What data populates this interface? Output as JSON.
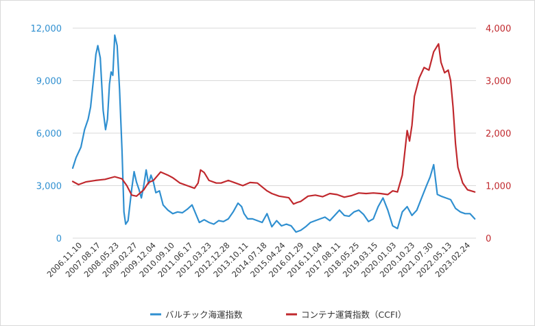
{
  "chart_data": {
    "type": "line",
    "title": "",
    "x_tick_labels": [
      "2006.11.10",
      "2007.08.17",
      "2008.05.23",
      "2009.02.27",
      "2009.12.04",
      "2010.09.10",
      "2011.06.17",
      "2012.03.23",
      "2012.12.28",
      "2013.10.11",
      "2014.07.18",
      "2015.04.24",
      "2016.01.29",
      "2016.11.04",
      "2017.08.11",
      "2018.05.25",
      "2019.03.15",
      "2020.01.03",
      "2020.10.23",
      "2021.07.30",
      "2022.05.13",
      "2023.02.24"
    ],
    "y_left": {
      "ticks": [
        "0",
        "3,000",
        "6,000",
        "9,000",
        "12,000"
      ],
      "range": [
        0,
        12000
      ]
    },
    "y_right": {
      "ticks": [
        "0",
        "1,000",
        "2,000",
        "3,000",
        "4,000"
      ],
      "range": [
        0,
        4000
      ]
    },
    "grid": "horizontal",
    "legend_position": "bottom",
    "colors": {
      "series_bdi": "#2f8fd0",
      "series_ccfi": "#c0282d",
      "grid": "#d9d9d9"
    },
    "series": [
      {
        "name": "バルチック海運指数",
        "axis": "left",
        "x": [
          2006.86,
          2007.0,
          2007.2,
          2007.35,
          2007.5,
          2007.6,
          2007.75,
          2007.82,
          2007.9,
          2008.0,
          2008.12,
          2008.22,
          2008.3,
          2008.38,
          2008.45,
          2008.52,
          2008.6,
          2008.7,
          2008.8,
          2008.9,
          2008.98,
          2009.05,
          2009.15,
          2009.3,
          2009.4,
          2009.5,
          2009.6,
          2009.7,
          2009.8,
          2009.9,
          2010.0,
          2010.1,
          2010.2,
          2010.3,
          2010.45,
          2010.6,
          2010.8,
          2011.0,
          2011.2,
          2011.4,
          2011.6,
          2011.8,
          2011.95,
          2012.1,
          2012.3,
          2012.5,
          2012.7,
          2012.9,
          2013.1,
          2013.3,
          2013.5,
          2013.7,
          2013.85,
          2013.95,
          2014.1,
          2014.3,
          2014.5,
          2014.7,
          2014.9,
          2015.1,
          2015.3,
          2015.5,
          2015.7,
          2015.9,
          2016.1,
          2016.3,
          2016.5,
          2016.7,
          2016.9,
          2017.1,
          2017.3,
          2017.5,
          2017.7,
          2017.9,
          2018.1,
          2018.3,
          2018.5,
          2018.7,
          2018.9,
          2019.1,
          2019.3,
          2019.5,
          2019.7,
          2019.9,
          2020.1,
          2020.3,
          2020.5,
          2020.7,
          2020.9,
          2021.1,
          2021.3,
          2021.5,
          2021.65,
          2021.8,
          2021.95,
          2022.1,
          2022.3,
          2022.5,
          2022.7,
          2022.9,
          2023.1,
          2023.3,
          2023.5
        ],
        "y": [
          4000,
          4600,
          5200,
          6200,
          6800,
          7500,
          9500,
          10500,
          11000,
          10300,
          7300,
          6200,
          6800,
          8800,
          9500,
          9300,
          11600,
          11000,
          8500,
          5000,
          1500,
          800,
          1000,
          2800,
          3800,
          3200,
          2800,
          2300,
          3000,
          3900,
          3100,
          3600,
          3200,
          2600,
          2700,
          1900,
          1600,
          1400,
          1500,
          1450,
          1650,
          1900,
          1400,
          900,
          1050,
          900,
          800,
          1000,
          950,
          1100,
          1500,
          2000,
          1800,
          1400,
          1100,
          1100,
          1000,
          900,
          1400,
          650,
          1000,
          700,
          800,
          700,
          350,
          450,
          650,
          900,
          1000,
          1100,
          1200,
          1000,
          1300,
          1600,
          1300,
          1250,
          1500,
          1600,
          1350,
          950,
          1100,
          1800,
          2300,
          1600,
          700,
          550,
          1500,
          1800,
          1300,
          1600,
          2300,
          3000,
          3500,
          4200,
          2500,
          2400,
          2300,
          2200,
          1700,
          1500,
          1400,
          1400,
          1100
        ]
      },
      {
        "name": "コンテナ運賃指数（CCFI）",
        "axis": "right",
        "x": [
          2006.86,
          2007.1,
          2007.4,
          2007.8,
          2008.2,
          2008.6,
          2008.9,
          2009.1,
          2009.3,
          2009.5,
          2009.8,
          2010.0,
          2010.2,
          2010.5,
          2010.8,
          2011.0,
          2011.3,
          2011.6,
          2011.9,
          2012.05,
          2012.15,
          2012.3,
          2012.5,
          2012.8,
          2013.0,
          2013.3,
          2013.6,
          2013.9,
          2014.2,
          2014.5,
          2014.9,
          2015.1,
          2015.4,
          2015.8,
          2016.0,
          2016.15,
          2016.3,
          2016.6,
          2016.9,
          2017.2,
          2017.5,
          2017.8,
          2018.1,
          2018.4,
          2018.7,
          2019.0,
          2019.3,
          2019.6,
          2019.9,
          2020.1,
          2020.3,
          2020.5,
          2020.7,
          2020.8,
          2020.9,
          2021.0,
          2021.2,
          2021.4,
          2021.6,
          2021.8,
          2022.0,
          2022.1,
          2022.25,
          2022.4,
          2022.5,
          2022.6,
          2022.7,
          2022.8,
          2023.0,
          2023.2,
          2023.5
        ],
        "y": [
          1080,
          1020,
          1070,
          1100,
          1120,
          1170,
          1130,
          1000,
          820,
          800,
          920,
          1060,
          1100,
          1260,
          1200,
          1150,
          1050,
          1000,
          950,
          1050,
          1300,
          1250,
          1100,
          1050,
          1050,
          1100,
          1050,
          1000,
          1060,
          1050,
          900,
          850,
          800,
          770,
          650,
          680,
          700,
          800,
          820,
          790,
          850,
          830,
          780,
          810,
          860,
          850,
          860,
          850,
          830,
          900,
          880,
          1200,
          2050,
          1850,
          2150,
          2700,
          3050,
          3250,
          3200,
          3550,
          3700,
          3350,
          3150,
          3200,
          3000,
          2500,
          1800,
          1350,
          1050,
          920,
          880
        ]
      }
    ]
  }
}
